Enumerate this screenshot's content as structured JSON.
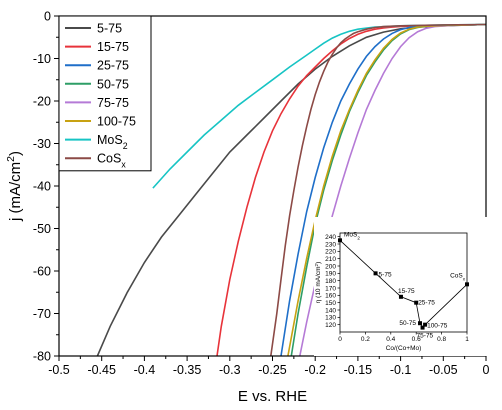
{
  "chart_data": [
    {
      "type": "line",
      "xlabel": "E vs. RHE",
      "ylabel_main": "j (mA/cm",
      "ylabel_sup": "2",
      "ylabel_end": ")",
      "xlim": [
        -0.5,
        0
      ],
      "ylim": [
        -80,
        0
      ],
      "x_ticks": [
        -0.5,
        -0.45,
        -0.4,
        -0.35,
        -0.3,
        -0.25,
        -0.2,
        -0.15,
        -0.1,
        -0.05,
        0
      ],
      "x_tick_labels": [
        "-0.5",
        "-0.45",
        "-0.4",
        "-0.35",
        "-0.3",
        "-0.25",
        "-0.2",
        "-0.15",
        "-0.1",
        "-0.05",
        "0"
      ],
      "y_ticks": [
        0,
        -10,
        -20,
        -30,
        -40,
        -50,
        -60,
        -70,
        -80
      ],
      "y_tick_labels": [
        "0",
        "-10",
        "-20",
        "-30",
        "-40",
        "-50",
        "-60",
        "-70",
        "-80"
      ],
      "legend_position": "top-left",
      "series": [
        {
          "name": "5-75",
          "name_base": "5-75",
          "name_sub": "",
          "color": "#4a4a4a",
          "x": [
            -0.455,
            -0.44,
            -0.42,
            -0.4,
            -0.38,
            -0.36,
            -0.34,
            -0.32,
            -0.3,
            -0.28,
            -0.26,
            -0.24,
            -0.22,
            -0.2,
            -0.18,
            -0.16,
            -0.14,
            -0.12,
            -0.1,
            -0.08,
            -0.05,
            -0.02,
            0
          ],
          "y": [
            -80,
            -73,
            -65,
            -58,
            -52,
            -47,
            -42,
            -37,
            -32,
            -28,
            -24,
            -20,
            -16,
            -12.5,
            -9.5,
            -7,
            -5,
            -3.8,
            -3,
            -2.6,
            -2.3,
            -2.1,
            -2
          ]
        },
        {
          "name": "15-75",
          "name_base": "15-75",
          "name_sub": "",
          "color": "#e8333a",
          "x": [
            -0.315,
            -0.31,
            -0.3,
            -0.29,
            -0.28,
            -0.27,
            -0.26,
            -0.25,
            -0.24,
            -0.23,
            -0.22,
            -0.21,
            -0.2,
            -0.19,
            -0.18,
            -0.17,
            -0.16,
            -0.15,
            -0.14,
            -0.13,
            -0.12,
            -0.11,
            -0.1,
            -0.08,
            -0.05,
            -0.02,
            0
          ],
          "y": [
            -80,
            -73,
            -62,
            -53,
            -45,
            -38,
            -32,
            -27,
            -23,
            -19.5,
            -16.5,
            -14,
            -12,
            -10,
            -8.2,
            -6.6,
            -5.3,
            -4.3,
            -3.6,
            -3.1,
            -2.8,
            -2.6,
            -2.45,
            -2.3,
            -2.2,
            -2.1,
            -2
          ]
        },
        {
          "name": "25-75",
          "name_base": "25-75",
          "name_sub": "",
          "color": "#1f6fc9",
          "x": [
            -0.24,
            -0.23,
            -0.22,
            -0.21,
            -0.2,
            -0.19,
            -0.18,
            -0.17,
            -0.16,
            -0.15,
            -0.14,
            -0.13,
            -0.12,
            -0.11,
            -0.1,
            -0.09,
            -0.08,
            -0.05,
            -0.02,
            0
          ],
          "y": [
            -80,
            -67,
            -56,
            -46,
            -38,
            -31,
            -25,
            -20,
            -16,
            -12.5,
            -9.5,
            -7.2,
            -5.4,
            -4.1,
            -3.2,
            -2.7,
            -2.4,
            -2.2,
            -2.1,
            -2
          ]
        },
        {
          "name": "50-75",
          "name_base": "50-75",
          "name_sub": "",
          "color": "#2e9e67",
          "x": [
            -0.228,
            -0.22,
            -0.21,
            -0.2,
            -0.19,
            -0.18,
            -0.17,
            -0.16,
            -0.15,
            -0.14,
            -0.13,
            -0.12,
            -0.11,
            -0.1,
            -0.09,
            -0.08,
            -0.07,
            -0.05,
            -0.02,
            0
          ],
          "y": [
            -80,
            -70,
            -59,
            -49,
            -41,
            -34,
            -28,
            -22.5,
            -18,
            -14,
            -10.8,
            -8,
            -5.8,
            -4.2,
            -3.2,
            -2.7,
            -2.4,
            -2.2,
            -2.1,
            -2
          ]
        },
        {
          "name": "75-75",
          "name_base": "75-75",
          "name_sub": "",
          "color": "#b57ad6",
          "x": [
            -0.218,
            -0.21,
            -0.2,
            -0.19,
            -0.18,
            -0.17,
            -0.16,
            -0.15,
            -0.14,
            -0.13,
            -0.12,
            -0.11,
            -0.1,
            -0.09,
            -0.08,
            -0.07,
            -0.06,
            -0.04,
            -0.02,
            0
          ],
          "y": [
            -80,
            -72,
            -63,
            -55,
            -47,
            -40,
            -33.5,
            -27.5,
            -22,
            -17.5,
            -13.5,
            -10,
            -7.2,
            -5.1,
            -3.7,
            -2.9,
            -2.5,
            -2.2,
            -2.1,
            -2
          ]
        },
        {
          "name": "100-75",
          "name_base": "100-75",
          "name_sub": "",
          "color": "#c8a212",
          "x": [
            -0.232,
            -0.22,
            -0.21,
            -0.2,
            -0.19,
            -0.18,
            -0.17,
            -0.16,
            -0.15,
            -0.14,
            -0.13,
            -0.12,
            -0.11,
            -0.1,
            -0.09,
            -0.08,
            -0.07,
            -0.05,
            -0.02,
            0
          ],
          "y": [
            -80,
            -67,
            -57,
            -48,
            -40,
            -33,
            -27,
            -22,
            -17.5,
            -13.5,
            -10.3,
            -7.6,
            -5.5,
            -4,
            -3.1,
            -2.6,
            -2.4,
            -2.2,
            -2.1,
            -2
          ]
        },
        {
          "name": "MoS2",
          "name_base": "MoS",
          "name_sub": "2",
          "color": "#17c4c4",
          "x": [
            -0.39,
            -0.37,
            -0.35,
            -0.33,
            -0.31,
            -0.29,
            -0.27,
            -0.25,
            -0.23,
            -0.21,
            -0.2,
            -0.19,
            -0.18,
            -0.17,
            -0.16,
            -0.15,
            -0.13,
            -0.1,
            -0.05,
            0
          ],
          "y": [
            -40.5,
            -36,
            -32,
            -28,
            -24.5,
            -21,
            -18,
            -15,
            -12,
            -9.2,
            -7.8,
            -6.4,
            -5.2,
            -4.3,
            -3.6,
            -3.1,
            -2.6,
            -2.3,
            -2.1,
            -2
          ]
        },
        {
          "name": "CoSx",
          "name_base": "CoS",
          "name_sub": "x",
          "color": "#8c4a46",
          "x": [
            -0.252,
            -0.245,
            -0.24,
            -0.235,
            -0.23,
            -0.225,
            -0.22,
            -0.215,
            -0.21,
            -0.205,
            -0.2,
            -0.195,
            -0.19,
            -0.185,
            -0.18,
            -0.175,
            -0.17,
            -0.165,
            -0.16,
            -0.155,
            -0.15,
            -0.14,
            -0.13,
            -0.12,
            -0.1,
            -0.05,
            0
          ],
          "y": [
            -80,
            -70,
            -62,
            -54,
            -47,
            -41,
            -35.5,
            -30.5,
            -26,
            -22,
            -18.5,
            -15.5,
            -13,
            -10.8,
            -9,
            -7.5,
            -6.3,
            -5.4,
            -4.7,
            -4.1,
            -3.7,
            -3.1,
            -2.7,
            -2.5,
            -2.3,
            -2.1,
            -2
          ]
        }
      ]
    },
    {
      "type": "scatter",
      "xlabel": "Co/(Co+Mo)",
      "ylabel_main": "η (10 mA/cm",
      "ylabel_sup": "2",
      "ylabel_end": ")",
      "xlim": [
        0,
        1
      ],
      "ylim": [
        110,
        245
      ],
      "x_ticks": [
        0,
        0.2,
        0.4,
        0.6,
        0.8,
        1
      ],
      "x_tick_labels": [
        "0",
        "0.2",
        "0.4",
        "0.6",
        "0.8",
        "1"
      ],
      "y_ticks": [
        120,
        130,
        140,
        150,
        160,
        170,
        180,
        190,
        200,
        210,
        220,
        230,
        240
      ],
      "y_tick_labels": [
        "120",
        "130",
        "140",
        "150",
        "160",
        "170",
        "180",
        "190",
        "200",
        "210",
        "220",
        "230",
        "240"
      ],
      "points": [
        {
          "label": "MoS",
          "label_sub": "2",
          "x": 0,
          "y": 235
        },
        {
          "label": "5-75",
          "label_sub": "",
          "x": 0.28,
          "y": 190
        },
        {
          "label": "15-75",
          "label_sub": "",
          "x": 0.48,
          "y": 158
        },
        {
          "label": "25-75",
          "label_sub": "",
          "x": 0.6,
          "y": 150
        },
        {
          "label": "50-75",
          "label_sub": "",
          "x": 0.63,
          "y": 122
        },
        {
          "label": "75-75",
          "label_sub": "",
          "x": 0.65,
          "y": 116
        },
        {
          "label": "100-75",
          "label_sub": "",
          "x": 0.67,
          "y": 120
        },
        {
          "label": "CoS",
          "label_sub": "x",
          "x": 1,
          "y": 175
        }
      ]
    }
  ]
}
